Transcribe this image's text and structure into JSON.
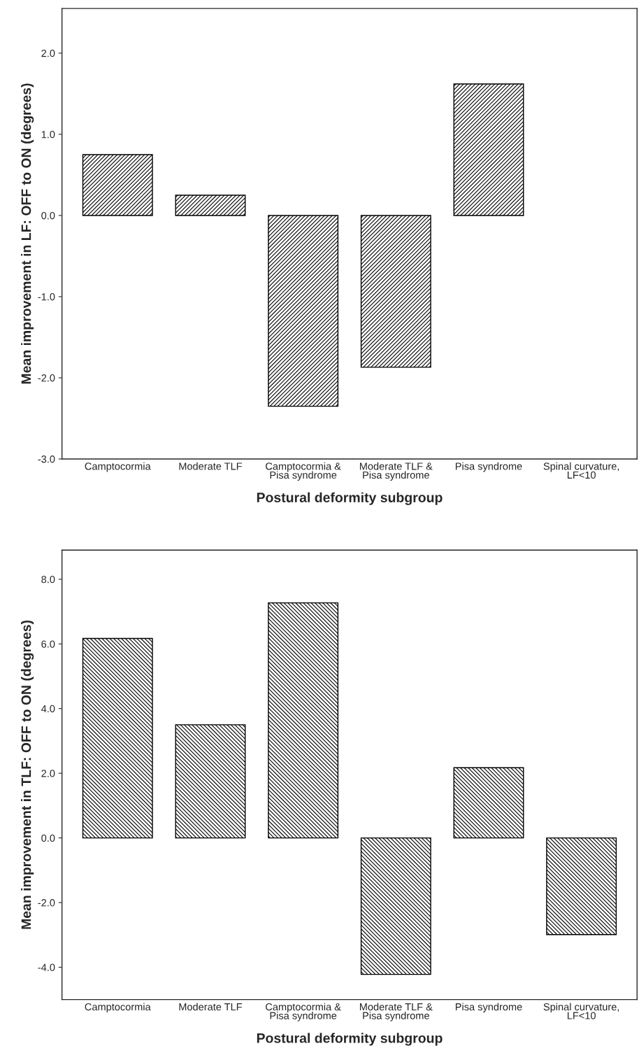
{
  "chart_data": [
    {
      "type": "bar",
      "xlabel": "Postural deformity subgroup",
      "ylabel": "Mean improvement in LF: OFF to ON (degrees)",
      "categories": [
        "Camptocormia",
        "Moderate TLF",
        "Camptocormia &\nPisa syndrome",
        "Moderate TLF &\nPisa syndrome",
        "Pisa syndrome",
        "Spinal curvature,\nLF<10"
      ],
      "values": [
        0.75,
        0.25,
        -2.35,
        -1.87,
        1.62,
        null
      ],
      "color": "#000000",
      "ylim": [
        -3.0,
        2.55
      ],
      "yticks": [
        {
          "value": -3,
          "label": "-3.0"
        },
        {
          "value": -2,
          "label": "-2.0"
        },
        {
          "value": -1,
          "label": "-1.0"
        },
        {
          "value": 0,
          "label": "0.0"
        },
        {
          "value": 1,
          "label": "1.0"
        },
        {
          "value": 2,
          "label": "2.0"
        }
      ],
      "grid": false,
      "legend": false
    },
    {
      "type": "bar",
      "xlabel": "Postural deformity subgroup",
      "ylabel": "Mean improvement in TLF: OFF to ON (degrees)",
      "categories": [
        "Camptocormia",
        "Moderate TLF",
        "Camptocormia &\nPisa syndrome",
        "Moderate TLF &\nPisa syndrome",
        "Pisa syndrome",
        "Spinal curvature,\nLF<10"
      ],
      "values": [
        6.17,
        3.5,
        7.27,
        -4.22,
        2.17,
        -2.99
      ],
      "color": "#000000",
      "ylim": [
        -5.0,
        8.9
      ],
      "yticks": [
        {
          "value": -4,
          "label": "-4.0"
        },
        {
          "value": -2,
          "label": "-2.0"
        },
        {
          "value": 0,
          "label": "0.0"
        },
        {
          "value": 2,
          "label": "2.0"
        },
        {
          "value": 4,
          "label": "4.0"
        },
        {
          "value": 6,
          "label": "6.0"
        },
        {
          "value": 8,
          "label": "8.0"
        }
      ],
      "grid": false,
      "legend": false
    }
  ]
}
